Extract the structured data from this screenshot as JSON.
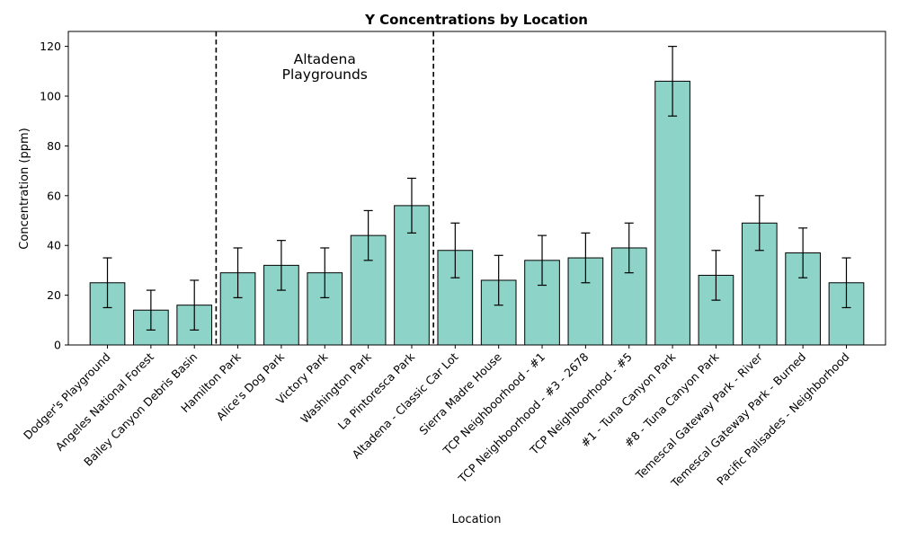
{
  "chart_data": {
    "type": "bar",
    "title": "Y Concentrations by Location",
    "xlabel": "Location",
    "ylabel": "Concentration (ppm)",
    "ylim": [
      0,
      126
    ],
    "yticks": [
      0,
      20,
      40,
      60,
      80,
      100,
      120
    ],
    "grid": false,
    "bar_color": "#8dd3c7",
    "categories": [
      "Dodger's Playground",
      "Angeles National Forest",
      "Bailey Canyon Debris Basin",
      "Hamilton Park",
      "Alice's Dog Park",
      "Victory Park",
      "Washington Park",
      "La Pintoresca Park",
      "Altadena - Classic Car Lot",
      "Sierra Madre House",
      "TCP Neighboorhood - #1",
      "TCP Neighboorhood - #3 - 2678",
      "TCP Neighboorhood - #5",
      "#1 - Tuna Canyon Park",
      "#8 - Tuna Canyon Park",
      "Temescal Gateway Park - River",
      "Temescal Gateway Park - Burned",
      "Pacific Palisades - Neighborhood"
    ],
    "values": [
      25,
      14,
      16,
      29,
      32,
      29,
      44,
      56,
      38,
      26,
      34,
      35,
      39,
      106,
      28,
      49,
      37,
      25
    ],
    "errors": [
      10,
      8,
      10,
      10,
      10,
      10,
      10,
      11,
      11,
      10,
      10,
      10,
      10,
      14,
      10,
      11,
      10,
      10
    ],
    "dividers_after_category": [
      2.5,
      7.5
    ],
    "annotation": {
      "lines": [
        "Altadena",
        "Playgrounds"
      ],
      "x_center": 5.0,
      "y": 113
    }
  }
}
